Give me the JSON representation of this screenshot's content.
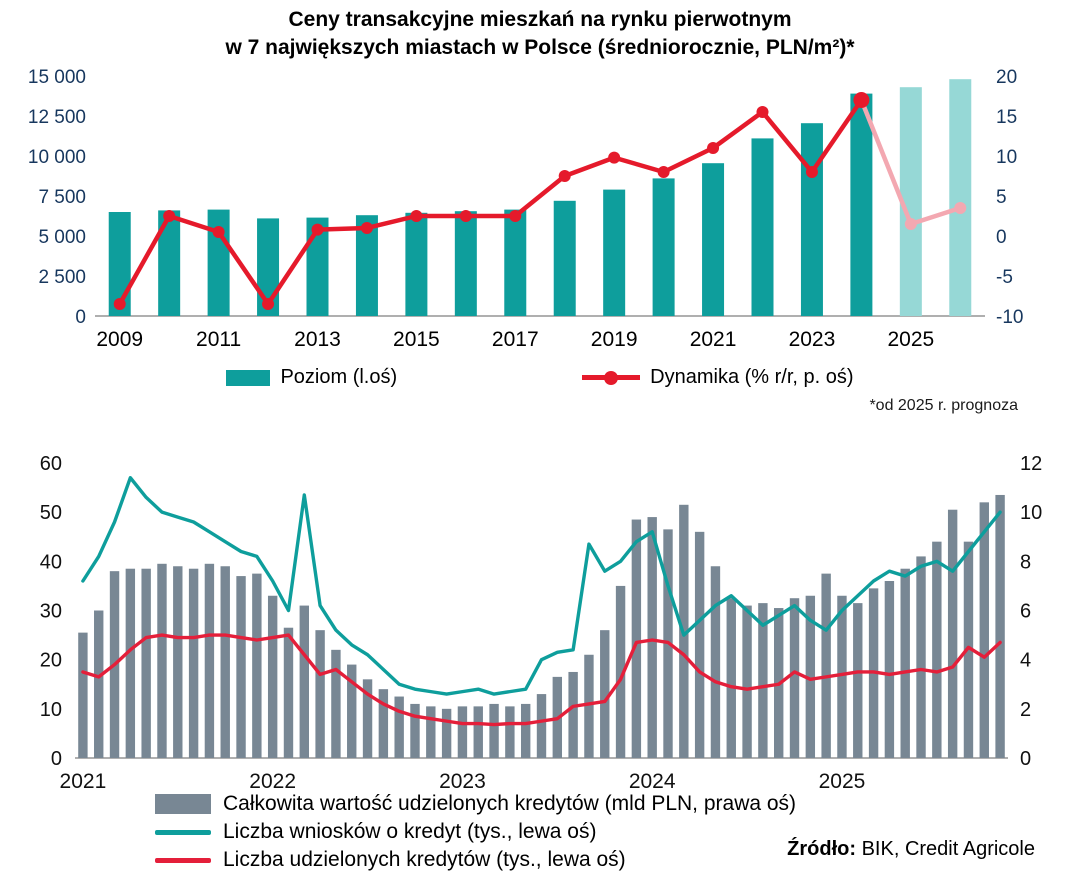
{
  "chart_data": [
    {
      "type": "bar+line",
      "title_lines": [
        "Ceny transakcyjne mieszkań na rynku pierwotnym",
        "w 7 największych miastach w Polsce (średniorocznie, PLN/m²)*"
      ],
      "footnote": "*od 2025 r. prognoza",
      "categories": [
        2009,
        2010,
        2011,
        2012,
        2013,
        2014,
        2015,
        2016,
        2017,
        2018,
        2019,
        2020,
        2021,
        2022,
        2023,
        2024,
        2025,
        2026
      ],
      "x_tick_labels": [
        "2009",
        "2011",
        "2013",
        "2015",
        "2017",
        "2019",
        "2021",
        "2023",
        "2025"
      ],
      "left_axis": {
        "min": 0,
        "max": 15000,
        "tick_labels": [
          "0",
          "2 500",
          "5 000",
          "7 500",
          "10 000",
          "12 500",
          "15 000"
        ]
      },
      "right_axis": {
        "min": -10,
        "max": 20,
        "tick_labels": [
          "-10",
          "-5",
          "0",
          "5",
          "10",
          "15",
          "20"
        ]
      },
      "series": [
        {
          "name": "Poziom (l.oś)",
          "type": "bar",
          "axis": "left",
          "color": "#0e9e9c",
          "forecast_color": "#96d8d6",
          "forecast_from_index": 16,
          "values": [
            6500,
            6600,
            6650,
            6100,
            6150,
            6300,
            6450,
            6550,
            6650,
            7200,
            7900,
            8600,
            9550,
            11100,
            12050,
            13900,
            14300,
            14800
          ]
        },
        {
          "name": "Dynamika (% r/r, p. oś)",
          "type": "line",
          "axis": "right",
          "color": "#e51a2b",
          "forecast_color": "#f3a8b1",
          "forecast_from_index": 16,
          "values": [
            -8.5,
            2.5,
            0.5,
            -8.5,
            0.8,
            1.0,
            2.5,
            2.5,
            2.5,
            7.5,
            9.8,
            8.0,
            11.0,
            15.5,
            8.0,
            17.0,
            1.5,
            3.5
          ]
        }
      ]
    },
    {
      "type": "bar+line",
      "x_unit": "month",
      "x_start": "2021-01",
      "x_tick_labels": [
        "2021",
        "2022",
        "2023",
        "2024",
        "2025"
      ],
      "x_tick_indices": [
        0,
        12,
        24,
        36,
        48
      ],
      "left_axis": {
        "min": 0,
        "max": 60,
        "tick_labels": [
          "0",
          "10",
          "20",
          "30",
          "40",
          "50",
          "60"
        ]
      },
      "right_axis": {
        "min": 0,
        "max": 12,
        "tick_labels": [
          "0",
          "2",
          "4",
          "6",
          "8",
          "10",
          "12"
        ]
      },
      "series": [
        {
          "name": "Całkowita wartość udzielonych kredytów (mld PLN, prawa oś)",
          "type": "bar",
          "axis": "right",
          "color": "#788794",
          "values": [
            5.1,
            6.0,
            7.6,
            7.7,
            7.7,
            7.9,
            7.8,
            7.7,
            7.9,
            7.8,
            7.4,
            7.5,
            6.6,
            5.3,
            6.2,
            5.2,
            4.4,
            3.8,
            3.2,
            2.8,
            2.5,
            2.2,
            2.1,
            2.0,
            2.1,
            2.1,
            2.2,
            2.1,
            2.2,
            2.6,
            3.3,
            3.5,
            4.2,
            5.2,
            7.0,
            9.7,
            9.8,
            9.3,
            10.3,
            9.2,
            7.8,
            6.5,
            6.2,
            6.3,
            6.1,
            6.5,
            6.6,
            7.5,
            6.6,
            6.3,
            6.9,
            7.2,
            7.7,
            8.2,
            8.8,
            10.1,
            8.8,
            10.4,
            10.7
          ]
        },
        {
          "name": "Liczba wniosków o kredyt (tys., lewa oś)",
          "type": "line",
          "axis": "left",
          "color": "#0e9e9c",
          "values": [
            36,
            41,
            48,
            57,
            53,
            50,
            49,
            48,
            46,
            44,
            42,
            41,
            36,
            30,
            53.5,
            31,
            26,
            23,
            21,
            18,
            15,
            14,
            13.5,
            13,
            13.5,
            14,
            13,
            13.5,
            14,
            20,
            21.5,
            22,
            43.5,
            38,
            40,
            44,
            46,
            35,
            25,
            28,
            31,
            33,
            30,
            27,
            29,
            31,
            28,
            26,
            30,
            33,
            36,
            38,
            37,
            39,
            40,
            38,
            42,
            46,
            50
          ]
        },
        {
          "name": "Liczba udzielonych kredytów (tys., lewa oś)",
          "type": "line",
          "axis": "left",
          "color": "#e41f3a",
          "values": [
            17.5,
            16.5,
            19,
            22,
            24.5,
            25,
            24.5,
            24.5,
            25,
            25,
            24.5,
            24,
            24.5,
            25,
            21,
            17,
            18,
            15.5,
            13,
            11,
            9.5,
            8.5,
            8,
            7.5,
            7,
            7,
            6.8,
            7,
            7,
            7.5,
            8,
            10.5,
            11,
            11.5,
            16,
            23.5,
            24,
            23.5,
            21,
            17.5,
            15.5,
            14.5,
            14,
            14.5,
            15,
            17.5,
            16,
            16.5,
            17,
            17.5,
            17.5,
            17,
            17.5,
            18,
            17.5,
            18.5,
            22.5,
            20.5,
            23.5
          ]
        }
      ],
      "source_bold": "Źródło:",
      "source_rest": " BIK, Credit Agricole"
    }
  ]
}
